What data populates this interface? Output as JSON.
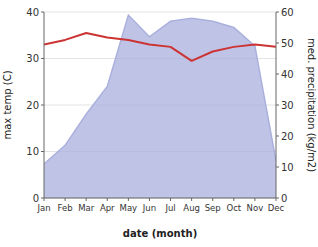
{
  "chart_data": {
    "type": "line",
    "xlabel": "date (month)",
    "ylabel": "max temp (C)",
    "y2label": "med. precipitation (kg/m2)",
    "categories": [
      "Jan",
      "Feb",
      "Mar",
      "Apr",
      "May",
      "Jun",
      "Jul",
      "Aug",
      "Sep",
      "Oct",
      "Nov",
      "Dec"
    ],
    "series": [
      {
        "type": "area",
        "axis": "y2",
        "color": "#aab0dd",
        "values": [
          11,
          17,
          27,
          36,
          59,
          52,
          57,
          58,
          57,
          55,
          49,
          12
        ]
      },
      {
        "type": "line",
        "color": "#cc3333",
        "values": [
          33.0,
          34.0,
          35.5,
          34.5,
          34.0,
          33.0,
          32.5,
          29.5,
          31.5,
          32.5,
          33.0,
          32.5
        ]
      }
    ],
    "ylim": [
      0,
      40
    ],
    "yticks": [
      0,
      10,
      20,
      30,
      40
    ],
    "y2lim": [
      0,
      60
    ],
    "y2ticks": [
      0,
      10,
      20,
      30,
      40,
      50,
      60
    ],
    "grid": true
  }
}
